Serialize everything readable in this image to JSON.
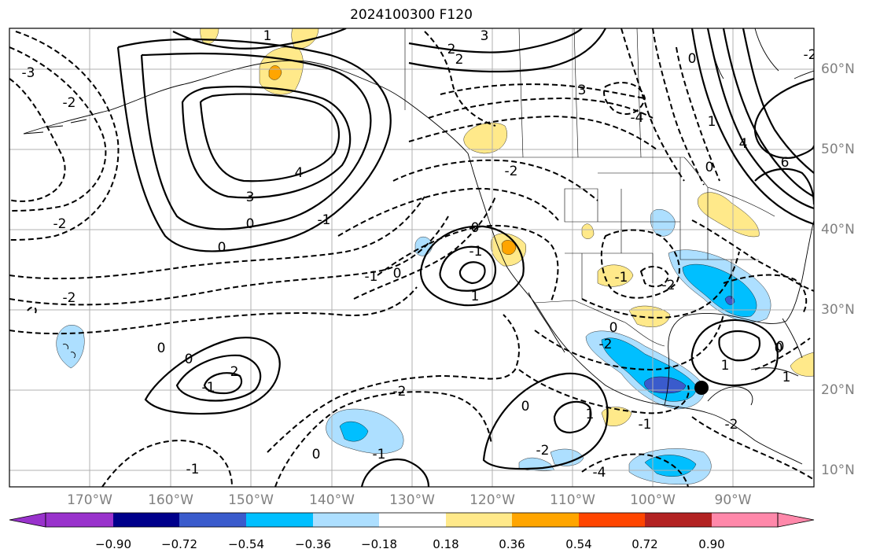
{
  "title": "2024100300 F120",
  "map": {
    "projection": "cylindrical",
    "lon_range": [
      -180,
      -80
    ],
    "lat_range": [
      8,
      65
    ],
    "grid": true,
    "lon_ticks": [
      "170°W",
      "160°W",
      "150°W",
      "140°W",
      "130°W",
      "120°W",
      "110°W",
      "100°W",
      "90°W"
    ],
    "lat_ticks": [
      "10°N",
      "20°N",
      "30°N",
      "40°N",
      "50°N",
      "60°N"
    ],
    "marker": {
      "name": "black-dot",
      "lon": -94,
      "lat": 20
    },
    "contour_labels": [
      "1",
      "3",
      "2",
      "2",
      "3",
      "-2",
      "-3",
      "-4",
      "-2",
      "4",
      "3",
      "0",
      "0",
      "-1",
      "-2",
      "-2",
      "0",
      "-1",
      "0",
      "0",
      "-1",
      "1",
      "-2",
      "0",
      "2",
      "-1",
      "-2",
      "0",
      "1",
      "-1",
      "-2",
      "-2",
      "0",
      "1",
      "-1",
      "0",
      "-2",
      "1",
      "0",
      "-1",
      "-1",
      "-4",
      "-2",
      "4",
      "6",
      "0",
      "0",
      "1",
      "0"
    ]
  },
  "colorbar": {
    "ticks": [
      "−0.90",
      "−0.72",
      "−0.54",
      "−0.36",
      "−0.18",
      "0.18",
      "0.36",
      "0.54",
      "0.72",
      "0.90"
    ],
    "colors": [
      "#9932CC",
      "#00008B",
      "#3A5BCC",
      "#00BFFF",
      "#ADDFFF",
      "#FFFFFF",
      "#FFE98A",
      "#FFA500",
      "#FF4500",
      "#B22222",
      "#FF88AA"
    ],
    "extend": "both"
  },
  "colors": {
    "dark_blue": "#3A5BCC",
    "medium_blue": "#00BFFF",
    "light_blue": "#ADDFFF",
    "light_yellow": "#FFE98A",
    "orange": "#FFA500",
    "grid": "#b0b0b0"
  }
}
